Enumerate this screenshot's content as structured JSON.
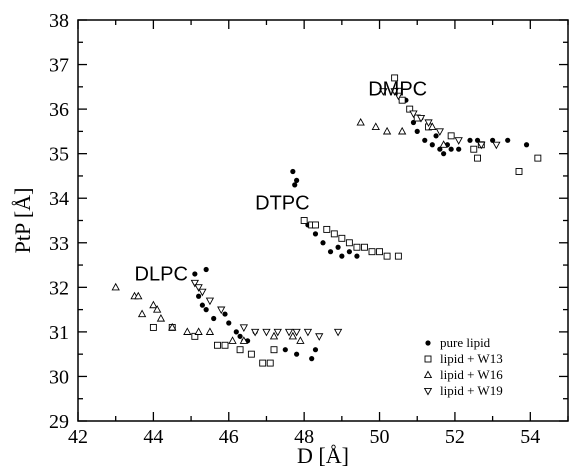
{
  "chart_data": {
    "type": "scatter",
    "title": "",
    "xlabel": "D [Å]",
    "ylabel": "PtP [Å]",
    "xlim": [
      42,
      55
    ],
    "ylim": [
      29,
      38
    ],
    "xticks": [
      "42",
      "44",
      "46",
      "48",
      "50",
      "52",
      "54"
    ],
    "yticks": [
      "29",
      "30",
      "31",
      "32",
      "33",
      "34",
      "35",
      "36",
      "37",
      "38"
    ],
    "grid": false,
    "legend_position": "bottom-right",
    "annotations": [
      "DMPC",
      "DTPC",
      "DLPC"
    ],
    "series": [
      {
        "name": "pure lipid",
        "marker": "filled-circle",
        "points": [
          [
            45.1,
            32.3
          ],
          [
            45.4,
            32.4
          ],
          [
            45.2,
            31.8
          ],
          [
            45.3,
            31.6
          ],
          [
            45.4,
            31.5
          ],
          [
            45.6,
            31.3
          ],
          [
            45.9,
            31.4
          ],
          [
            46.0,
            31.2
          ],
          [
            46.2,
            31.0
          ],
          [
            46.3,
            30.9
          ],
          [
            46.4,
            30.8
          ],
          [
            46.5,
            30.8
          ],
          [
            46.7,
            31.0
          ],
          [
            47.5,
            30.6
          ],
          [
            47.8,
            30.5
          ],
          [
            48.2,
            30.4
          ],
          [
            48.3,
            30.6
          ],
          [
            47.7,
            34.6
          ],
          [
            47.8,
            34.4
          ],
          [
            47.75,
            34.3
          ],
          [
            48.1,
            33.4
          ],
          [
            48.3,
            33.2
          ],
          [
            48.5,
            33.0
          ],
          [
            48.7,
            32.8
          ],
          [
            48.9,
            32.9
          ],
          [
            49.0,
            32.7
          ],
          [
            49.2,
            32.8
          ],
          [
            49.4,
            32.7
          ],
          [
            50.7,
            36.2
          ],
          [
            50.9,
            35.7
          ],
          [
            51.0,
            35.5
          ],
          [
            51.1,
            35.8
          ],
          [
            51.2,
            35.3
          ],
          [
            51.3,
            35.6
          ],
          [
            51.4,
            35.2
          ],
          [
            51.5,
            35.4
          ],
          [
            51.6,
            35.1
          ],
          [
            51.7,
            35.0
          ],
          [
            51.8,
            35.2
          ],
          [
            51.9,
            35.1
          ],
          [
            52.1,
            35.1
          ],
          [
            52.4,
            35.3
          ],
          [
            52.6,
            35.3
          ],
          [
            53.0,
            35.3
          ],
          [
            53.4,
            35.3
          ],
          [
            53.9,
            35.2
          ]
        ]
      },
      {
        "name": "lipid + W13",
        "marker": "open-square",
        "points": [
          [
            44.0,
            31.1
          ],
          [
            44.5,
            31.1
          ],
          [
            45.1,
            30.9
          ],
          [
            45.7,
            30.7
          ],
          [
            45.9,
            30.7
          ],
          [
            46.3,
            30.6
          ],
          [
            46.6,
            30.5
          ],
          [
            46.9,
            30.3
          ],
          [
            47.1,
            30.3
          ],
          [
            47.2,
            30.6
          ],
          [
            48.0,
            33.5
          ],
          [
            48.2,
            33.4
          ],
          [
            48.3,
            33.4
          ],
          [
            48.6,
            33.3
          ],
          [
            48.8,
            33.2
          ],
          [
            49.0,
            33.1
          ],
          [
            49.2,
            33.0
          ],
          [
            49.4,
            32.9
          ],
          [
            49.6,
            32.9
          ],
          [
            49.8,
            32.8
          ],
          [
            50.0,
            32.8
          ],
          [
            50.2,
            32.7
          ],
          [
            50.5,
            32.7
          ],
          [
            50.4,
            36.7
          ],
          [
            50.5,
            36.4
          ],
          [
            50.6,
            36.2
          ],
          [
            50.8,
            36.0
          ],
          [
            51.0,
            35.8
          ],
          [
            51.3,
            35.6
          ],
          [
            51.9,
            35.4
          ],
          [
            52.5,
            35.1
          ],
          [
            52.7,
            35.2
          ],
          [
            52.6,
            34.9
          ],
          [
            53.7,
            34.6
          ],
          [
            54.2,
            34.9
          ]
        ]
      },
      {
        "name": "lipid + W16",
        "marker": "open-triangle-up",
        "points": [
          [
            43.0,
            32.0
          ],
          [
            43.5,
            31.8
          ],
          [
            43.6,
            31.8
          ],
          [
            43.7,
            31.4
          ],
          [
            44.0,
            31.6
          ],
          [
            44.1,
            31.5
          ],
          [
            44.2,
            31.3
          ],
          [
            44.5,
            31.1
          ],
          [
            44.9,
            31.0
          ],
          [
            45.2,
            31.0
          ],
          [
            45.5,
            31.0
          ],
          [
            46.1,
            30.8
          ],
          [
            46.4,
            30.8
          ],
          [
            47.2,
            30.9
          ],
          [
            47.7,
            30.9
          ],
          [
            47.9,
            30.8
          ],
          [
            49.5,
            35.7
          ],
          [
            49.9,
            35.6
          ],
          [
            50.2,
            35.5
          ],
          [
            50.6,
            35.5
          ],
          [
            51.4,
            35.6
          ],
          [
            51.7,
            35.2
          ]
        ]
      },
      {
        "name": "lipid + W19",
        "marker": "open-triangle-down",
        "points": [
          [
            45.1,
            32.1
          ],
          [
            45.2,
            32.0
          ],
          [
            45.3,
            31.9
          ],
          [
            45.5,
            31.7
          ],
          [
            45.8,
            31.5
          ],
          [
            46.4,
            31.1
          ],
          [
            46.7,
            31.0
          ],
          [
            47.0,
            31.0
          ],
          [
            47.3,
            31.0
          ],
          [
            47.6,
            31.0
          ],
          [
            47.8,
            31.0
          ],
          [
            48.1,
            31.0
          ],
          [
            48.4,
            30.9
          ],
          [
            48.9,
            31.0
          ],
          [
            50.1,
            36.4
          ],
          [
            50.4,
            36.4
          ],
          [
            50.5,
            36.3
          ],
          [
            50.9,
            35.9
          ],
          [
            51.1,
            35.8
          ],
          [
            51.3,
            35.7
          ],
          [
            51.6,
            35.5
          ],
          [
            52.1,
            35.3
          ],
          [
            52.7,
            35.2
          ],
          [
            53.1,
            35.2
          ]
        ]
      }
    ],
    "group_labels": [
      {
        "text": "DMPC",
        "x": 49.7,
        "y": 36.3
      },
      {
        "text": "DTPC",
        "x": 46.7,
        "y": 33.75
      },
      {
        "text": "DLPC",
        "x": 43.5,
        "y": 32.15
      }
    ]
  }
}
